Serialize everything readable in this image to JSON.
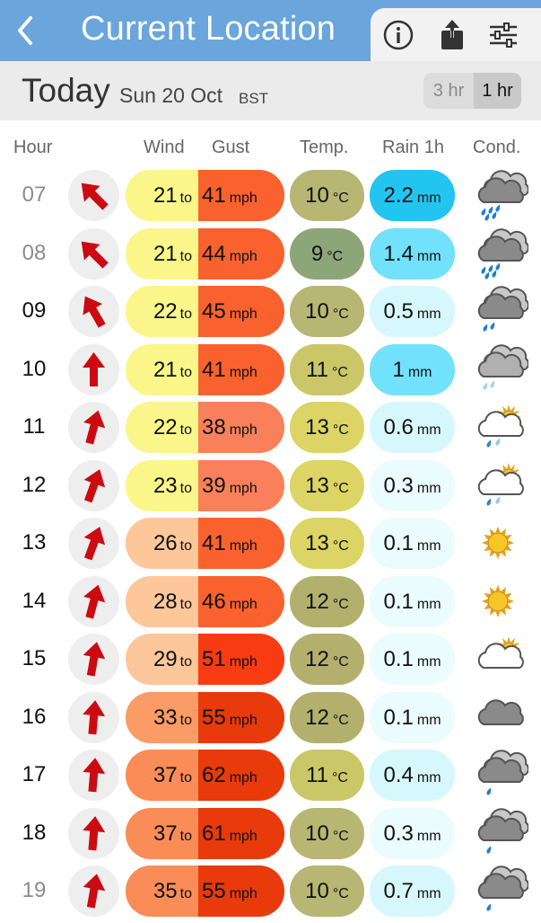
{
  "header": {
    "back_label": "<",
    "title": "Current Location"
  },
  "toolbar": {
    "info_icon": "info-icon",
    "share_icon": "share-icon",
    "settings_icon": "sliders-icon"
  },
  "dateband": {
    "today": "Today",
    "date": "Sun 20 Oct",
    "tz": "BST",
    "segment_3hr": "3 hr",
    "segment_1hr": "1 hr",
    "selected": "1 hr"
  },
  "columns": {
    "hour": "Hour",
    "wind": "Wind",
    "gust": "Gust",
    "temp": "Temp.",
    "rain": "Rain 1h",
    "cond": "Cond."
  },
  "units": {
    "to": "to",
    "mph": "mph",
    "degc": "°C",
    "mm": "mm"
  },
  "colors": {
    "arrow": "#cc0a12",
    "wind_yellow": "#fbf68a",
    "wind_peach_light": "#fdc79a",
    "wind_peach": "#fcb88a",
    "wind_orange_light": "#fb9b66",
    "wind_orange": "#fa8c58",
    "gust_orange": "#f9622e",
    "gust_orange_light": "#f9805b",
    "gust_red": "#f93b12",
    "gust_dark": "#e83a0a",
    "temp_9": "#8ca679",
    "temp_10": "#b7b673",
    "temp_11": "#cac769",
    "temp_12": "#b3b06e",
    "temp_13": "#dcd464",
    "rain_heavy": "#22c4f0",
    "rain_med": "#72e1fb",
    "rain_light": "#d6f8fc",
    "rain_vlight": "#eafcfd",
    "topbar": "#6aa5dc"
  },
  "rows": [
    {
      "hour": "07",
      "past": true,
      "dir": -45,
      "wind": "21",
      "gust": "41",
      "temp": "10",
      "rain": "2.2",
      "wind_color": "#fbf68a",
      "gust_color": "#f9622e",
      "temp_color": "#b7b673",
      "rain_color": "#22c4f0",
      "cond": "heavy-rain-cloud-icon"
    },
    {
      "hour": "08",
      "past": true,
      "dir": -45,
      "wind": "21",
      "gust": "44",
      "temp": "9",
      "rain": "1.4",
      "wind_color": "#fbf68a",
      "gust_color": "#f9622e",
      "temp_color": "#8ca679",
      "rain_color": "#72e1fb",
      "cond": "heavy-rain-cloud-icon"
    },
    {
      "hour": "09",
      "past": false,
      "dir": -30,
      "wind": "22",
      "gust": "45",
      "temp": "10",
      "rain": "0.5",
      "wind_color": "#fbf68a",
      "gust_color": "#f9622e",
      "temp_color": "#b7b673",
      "rain_color": "#d6f8fc",
      "cond": "rain-cloud-icon"
    },
    {
      "hour": "10",
      "past": false,
      "dir": 0,
      "wind": "21",
      "gust": "41",
      "temp": "11",
      "rain": "1",
      "wind_color": "#fbf68a",
      "gust_color": "#f9622e",
      "temp_color": "#cac769",
      "rain_color": "#72e1fb",
      "cond": "light-rain-cloud-icon"
    },
    {
      "hour": "11",
      "past": false,
      "dir": 15,
      "wind": "22",
      "gust": "38",
      "temp": "13",
      "rain": "0.6",
      "wind_color": "#fbf68a",
      "gust_color": "#f9805b",
      "temp_color": "#dcd464",
      "rain_color": "#d6f8fc",
      "cond": "sun-rain-cloud-icon"
    },
    {
      "hour": "12",
      "past": false,
      "dir": 20,
      "wind": "23",
      "gust": "39",
      "temp": "13",
      "rain": "0.3",
      "wind_color": "#fbf68a",
      "gust_color": "#f9805b",
      "temp_color": "#dcd464",
      "rain_color": "#eafcfd",
      "cond": "sun-rain-cloud-icon"
    },
    {
      "hour": "13",
      "past": false,
      "dir": 20,
      "wind": "26",
      "gust": "41",
      "temp": "13",
      "rain": "0.1",
      "wind_color": "#fdc79a",
      "gust_color": "#f9622e",
      "temp_color": "#dcd464",
      "rain_color": "#eafcfd",
      "cond": "sun-icon"
    },
    {
      "hour": "14",
      "past": false,
      "dir": 15,
      "wind": "28",
      "gust": "46",
      "temp": "12",
      "rain": "0.1",
      "wind_color": "#fdc79a",
      "gust_color": "#f9622e",
      "temp_color": "#b3b06e",
      "rain_color": "#eafcfd",
      "cond": "sun-icon"
    },
    {
      "hour": "15",
      "past": false,
      "dir": 10,
      "wind": "29",
      "gust": "51",
      "temp": "12",
      "rain": "0.1",
      "wind_color": "#fcc69b",
      "gust_color": "#f93b12",
      "temp_color": "#b3b06e",
      "rain_color": "#eafcfd",
      "cond": "sun-cloud-icon"
    },
    {
      "hour": "16",
      "past": false,
      "dir": 5,
      "wind": "33",
      "gust": "55",
      "temp": "12",
      "rain": "0.1",
      "wind_color": "#fb9b66",
      "gust_color": "#e83a0a",
      "temp_color": "#b3b06e",
      "rain_color": "#eafcfd",
      "cond": "cloud-icon"
    },
    {
      "hour": "17",
      "past": false,
      "dir": 5,
      "wind": "37",
      "gust": "62",
      "temp": "11",
      "rain": "0.4",
      "wind_color": "#fa8c58",
      "gust_color": "#e83a0a",
      "temp_color": "#cac769",
      "rain_color": "#d6f8fc",
      "cond": "drizzle-cloud-icon"
    },
    {
      "hour": "18",
      "past": false,
      "dir": 5,
      "wind": "37",
      "gust": "61",
      "temp": "10",
      "rain": "0.3",
      "wind_color": "#fa8c58",
      "gust_color": "#e83a0a",
      "temp_color": "#b7b673",
      "rain_color": "#eafcfd",
      "cond": "drizzle-cloud-icon"
    },
    {
      "hour": "19",
      "past": true,
      "dir": 10,
      "wind": "35",
      "gust": "55",
      "temp": "10",
      "rain": "0.7",
      "wind_color": "#fa8c58",
      "gust_color": "#e83a0a",
      "temp_color": "#b7b673",
      "rain_color": "#d6f8fc",
      "cond": "drizzle-cloud-icon"
    }
  ]
}
